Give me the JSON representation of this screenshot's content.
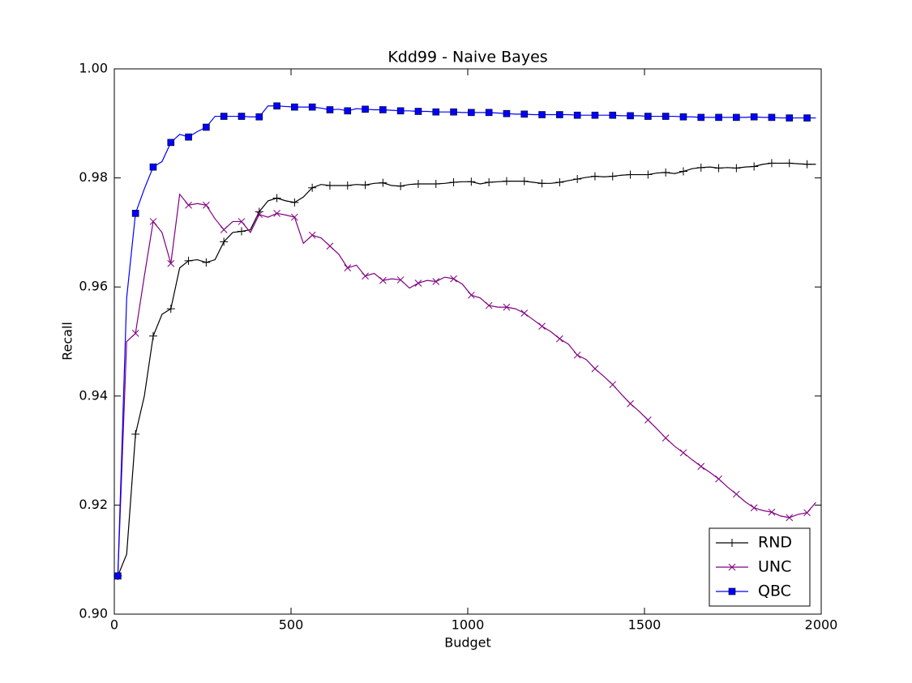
{
  "chart_data": {
    "type": "line",
    "title": "Kdd99 - Naive Bayes",
    "x_label": "Budget",
    "y_label": "Recall",
    "xlim": [
      0,
      2000
    ],
    "ylim": [
      0.9,
      1.0
    ],
    "xticks": [
      0,
      500,
      1000,
      1500,
      2000
    ],
    "yticks": [
      {
        "value": 0.9,
        "label": "0.90"
      },
      {
        "value": 0.92,
        "label": "0.92"
      },
      {
        "value": 0.94,
        "label": "0.94"
      },
      {
        "value": 0.96,
        "label": "0.96"
      },
      {
        "value": 0.98,
        "label": "0.98"
      },
      {
        "value": 1.0,
        "label": "1.00"
      }
    ],
    "grid": false,
    "legend": "lower right",
    "marker_every": 2,
    "x": [
      10,
      35,
      60,
      85,
      110,
      135,
      160,
      185,
      210,
      235,
      260,
      285,
      310,
      335,
      360,
      385,
      410,
      435,
      460,
      485,
      510,
      535,
      560,
      585,
      610,
      635,
      660,
      685,
      710,
      735,
      760,
      785,
      810,
      835,
      860,
      885,
      910,
      935,
      960,
      985,
      1010,
      1035,
      1060,
      1085,
      1110,
      1135,
      1160,
      1185,
      1210,
      1235,
      1260,
      1285,
      1310,
      1335,
      1360,
      1385,
      1410,
      1435,
      1460,
      1485,
      1510,
      1535,
      1560,
      1585,
      1610,
      1635,
      1660,
      1685,
      1710,
      1735,
      1760,
      1785,
      1810,
      1835,
      1860,
      1885,
      1910,
      1935,
      1960,
      1985
    ],
    "series": [
      {
        "name": "RND",
        "color": "#000000",
        "marker": "plus",
        "values": [
          0.907,
          0.911,
          0.933,
          0.94,
          0.951,
          0.955,
          0.956,
          0.9635,
          0.9648,
          0.965,
          0.9645,
          0.965,
          0.9683,
          0.97,
          0.9702,
          0.9705,
          0.9738,
          0.9758,
          0.9763,
          0.9758,
          0.9755,
          0.9765,
          0.9782,
          0.9788,
          0.9786,
          0.9786,
          0.9786,
          0.9788,
          0.9787,
          0.979,
          0.9791,
          0.9786,
          0.9785,
          0.9788,
          0.9789,
          0.9789,
          0.9789,
          0.979,
          0.9792,
          0.9793,
          0.9793,
          0.9789,
          0.9792,
          0.9793,
          0.9794,
          0.9794,
          0.9794,
          0.9792,
          0.979,
          0.979,
          0.9792,
          0.9795,
          0.9798,
          0.9801,
          0.9803,
          0.9802,
          0.9803,
          0.9805,
          0.9806,
          0.9806,
          0.9806,
          0.9809,
          0.981,
          0.9808,
          0.9812,
          0.9817,
          0.9819,
          0.982,
          0.9818,
          0.9819,
          0.9818,
          0.982,
          0.9821,
          0.9825,
          0.9827,
          0.9827,
          0.9827,
          0.9826,
          0.9825,
          0.9825
        ]
      },
      {
        "name": "UNC",
        "color": "#800080",
        "marker": "x",
        "values": [
          0.907,
          0.95,
          0.9515,
          0.962,
          0.972,
          0.97,
          0.9643,
          0.977,
          0.975,
          0.9753,
          0.975,
          0.9725,
          0.9705,
          0.972,
          0.972,
          0.97,
          0.9733,
          0.9728,
          0.9735,
          0.9732,
          0.9728,
          0.968,
          0.9695,
          0.969,
          0.9675,
          0.966,
          0.9635,
          0.964,
          0.962,
          0.9625,
          0.9612,
          0.9615,
          0.9613,
          0.9598,
          0.9607,
          0.9612,
          0.961,
          0.9618,
          0.9615,
          0.9605,
          0.9585,
          0.958,
          0.9566,
          0.9563,
          0.9563,
          0.956,
          0.9552,
          0.954,
          0.9528,
          0.9518,
          0.9505,
          0.9495,
          0.9475,
          0.9467,
          0.945,
          0.9436,
          0.9421,
          0.9403,
          0.9386,
          0.9372,
          0.9356,
          0.934,
          0.9323,
          0.9308,
          0.9296,
          0.9283,
          0.9271,
          0.926,
          0.9248,
          0.9233,
          0.922,
          0.9206,
          0.9195,
          0.919,
          0.9187,
          0.918,
          0.9177,
          0.9183,
          0.9186,
          0.9205
        ]
      },
      {
        "name": "QBC",
        "color": "#0000ff",
        "marker": "square",
        "values": [
          0.907,
          0.958,
          0.9735,
          0.978,
          0.982,
          0.983,
          0.9865,
          0.988,
          0.9875,
          0.9885,
          0.9893,
          0.9913,
          0.9913,
          0.9913,
          0.9913,
          0.9912,
          0.9912,
          0.9932,
          0.9932,
          0.9931,
          0.993,
          0.993,
          0.993,
          0.9928,
          0.9925,
          0.9926,
          0.9923,
          0.9927,
          0.9926,
          0.9925,
          0.9925,
          0.9924,
          0.9923,
          0.9923,
          0.9922,
          0.9922,
          0.9921,
          0.9921,
          0.9921,
          0.992,
          0.992,
          0.992,
          0.992,
          0.9919,
          0.9918,
          0.9917,
          0.9917,
          0.9916,
          0.9916,
          0.9916,
          0.9916,
          0.9916,
          0.9915,
          0.9915,
          0.9915,
          0.9915,
          0.9915,
          0.9914,
          0.9914,
          0.9914,
          0.9913,
          0.9913,
          0.9913,
          0.9913,
          0.9912,
          0.9912,
          0.9911,
          0.9911,
          0.9911,
          0.9911,
          0.9911,
          0.9911,
          0.9912,
          0.9911,
          0.9911,
          0.991,
          0.991,
          0.991,
          0.991,
          0.991
        ]
      }
    ]
  }
}
